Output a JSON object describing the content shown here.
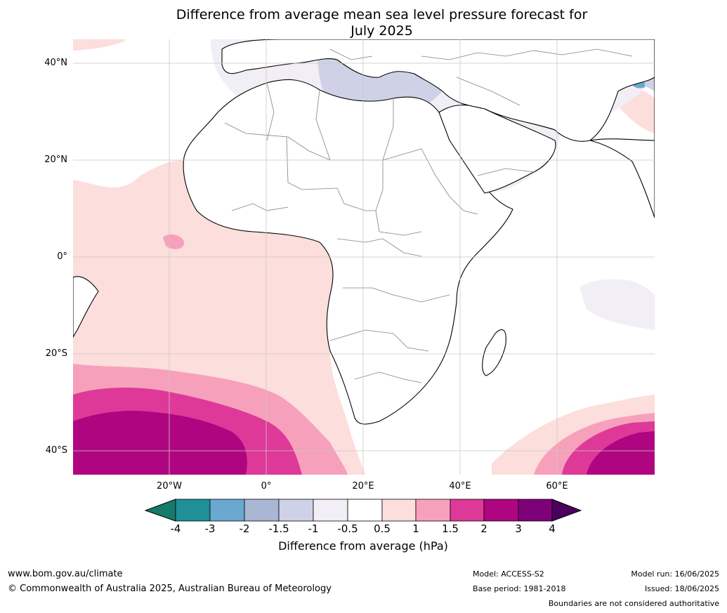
{
  "title_line1": "Difference from average mean sea level pressure forecast for",
  "title_line2": "July 2025",
  "lat_labels": [
    "40°N",
    "20°N",
    "0°",
    "20°S",
    "40°S"
  ],
  "lon_labels": [
    "20°W",
    "0°",
    "20°E",
    "40°E",
    "60°E"
  ],
  "colorbar": {
    "ticks": [
      "-4",
      "-3",
      "-2",
      "-1.5",
      "-1",
      "-0.5",
      "0.5",
      "1",
      "1.5",
      "2",
      "3",
      "4"
    ],
    "colors": [
      "#167a6b",
      "#1f8f98",
      "#6aa8d0",
      "#a9b7d4",
      "#cfd2e6",
      "#f2eef5",
      "#ffffff",
      "#fcdedc",
      "#f7a0bb",
      "#de3998",
      "#b00580",
      "#7e0079",
      "#4a005c"
    ],
    "label": "Difference from average (hPa)"
  },
  "footer": {
    "website": "www.bom.gov.au/climate",
    "copyright": "© Commonwealth of Australia 2025, Australian Bureau of Meteorology",
    "model": "Model: ACCESS-S2",
    "base_period": "Base period: 1981-2018",
    "model_run": "Model run: 16/06/2025",
    "issued": "Issued: 18/06/2025",
    "disclaimer": "Boundaries are not considered authoritative"
  }
}
